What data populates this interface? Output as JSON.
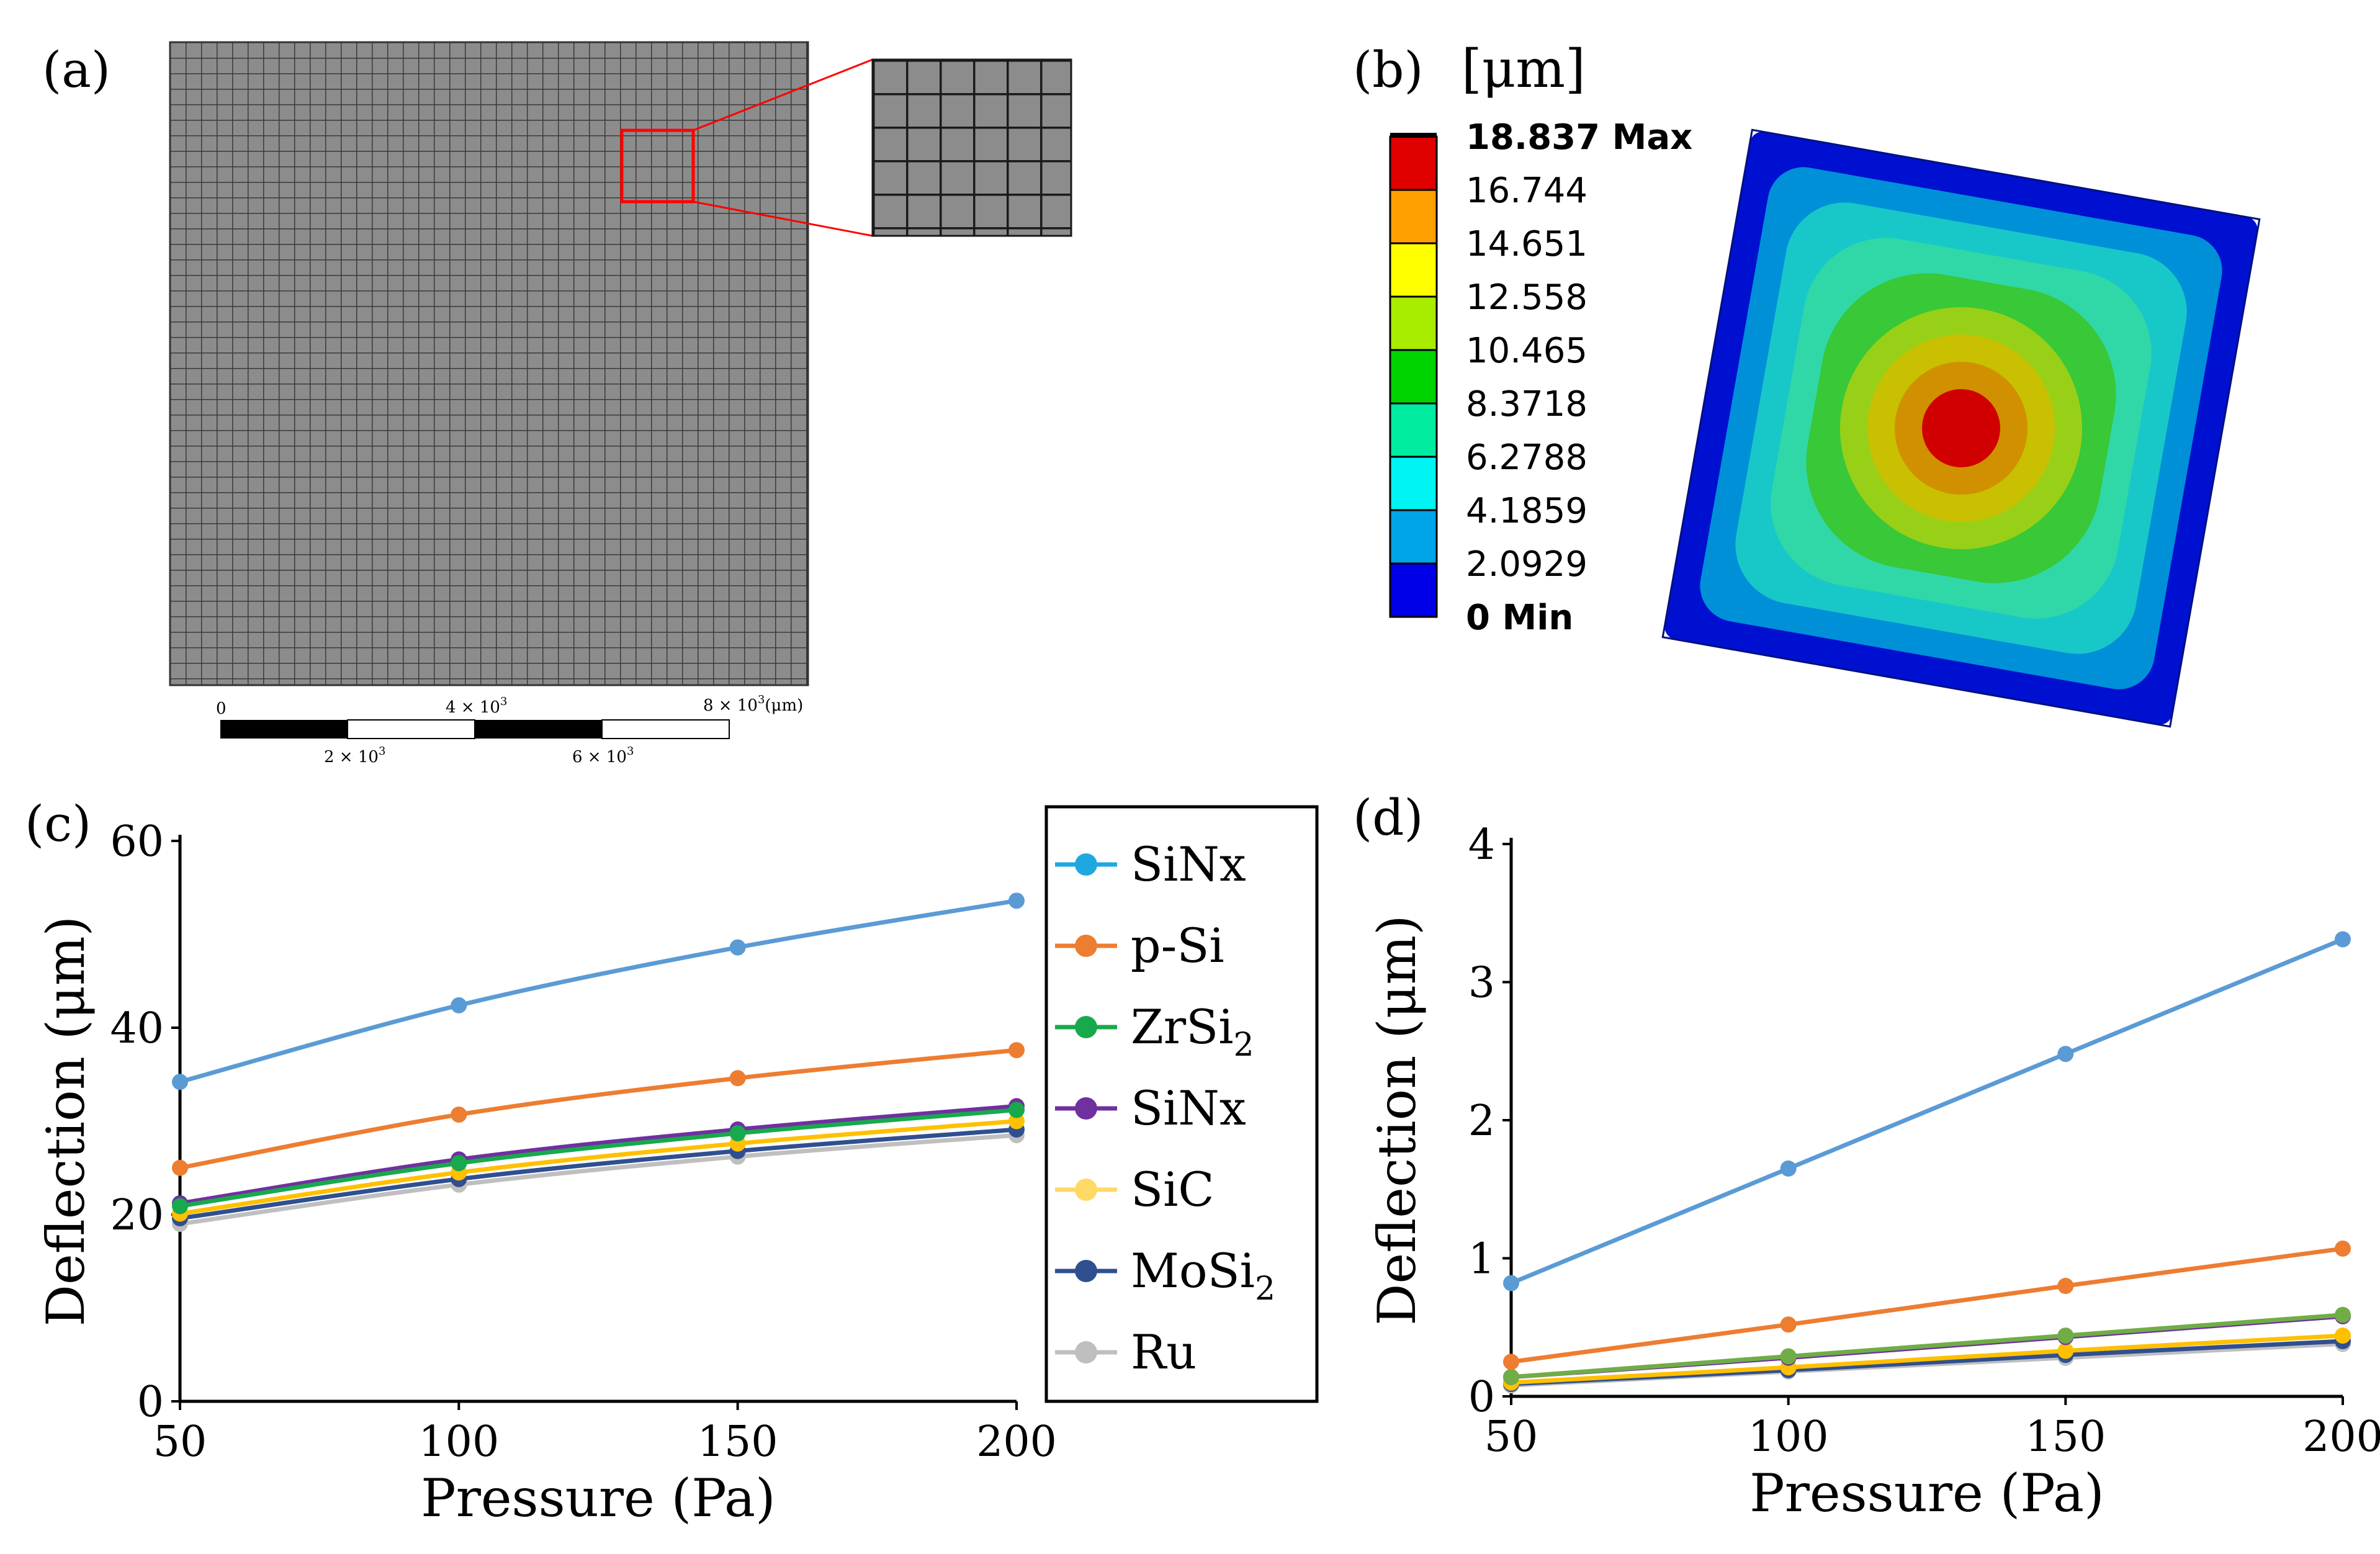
{
  "panels": {
    "a": {
      "label": "(a)",
      "scalebar": {
        "tick_0": "0",
        "tick_2": "2 × 10",
        "tick_4": "4 × 10",
        "tick_6": "6 × 10",
        "tick_8": "8 × 10",
        "exponent": "3",
        "unit": "(μm)"
      }
    },
    "b": {
      "label": "(b)",
      "unit": "[μm]",
      "colorbar": [
        {
          "label": "18.837 Max",
          "color": "#000000",
          "bold": true
        },
        {
          "label": "16.744",
          "color": "#e00000",
          "bold": false
        },
        {
          "label": "14.651",
          "color": "#ffa000",
          "bold": false
        },
        {
          "label": "12.558",
          "color": "#ffff00",
          "bold": false
        },
        {
          "label": "10.465",
          "color": "#a8ec00",
          "bold": false
        },
        {
          "label": "8.3718",
          "color": "#00d400",
          "bold": false
        },
        {
          "label": "6.2788",
          "color": "#00eca0",
          "bold": false
        },
        {
          "label": "4.1859",
          "color": "#00f4f4",
          "bold": false
        },
        {
          "label": "2.0929",
          "color": "#00a4e8",
          "bold": false
        },
        {
          "label": "0 Min",
          "color": "#0000e8",
          "bold": true
        }
      ],
      "contour_colors": [
        "#0010d0",
        "#0090d8",
        "#18c8c8",
        "#30d8a8",
        "#38c838",
        "#98d018",
        "#c8c000",
        "#d09000",
        "#d00000"
      ]
    },
    "c": {
      "label": "(c)"
    },
    "d": {
      "label": "(d)"
    }
  },
  "legend": {
    "entries": [
      {
        "label": "SiNx",
        "sub": "",
        "color": "#1fa8e0"
      },
      {
        "label": "p-Si",
        "sub": "",
        "color": "#ed7d31"
      },
      {
        "label": "ZrSi",
        "sub": "2",
        "color": "#18a94c"
      },
      {
        "label": "SiNx",
        "sub": "",
        "color": "#7030a0"
      },
      {
        "label": "SiC",
        "sub": "",
        "color": "#ffd966"
      },
      {
        "label": "MoSi",
        "sub": "2",
        "color": "#2f4f8f"
      },
      {
        "label": "Ru",
        "sub": "",
        "color": "#bfbfbf"
      }
    ]
  },
  "chart_data": [
    {
      "id": "c",
      "type": "line",
      "xlabel": "Pressure (Pa)",
      "ylabel": "Deflection (μm)",
      "x": [
        50,
        100,
        150,
        200
      ],
      "xticks": [
        50,
        100,
        150,
        200
      ],
      "yticks": [
        0,
        20,
        40,
        60
      ],
      "xlim": [
        50,
        200
      ],
      "ylim": [
        0,
        60
      ],
      "series": [
        {
          "name": "Ru",
          "color": "#bfbfbf",
          "values": [
            19.0,
            23.2,
            26.2,
            28.5
          ]
        },
        {
          "name": "MoSi2",
          "color": "#2f4f8f",
          "values": [
            19.6,
            23.8,
            26.8,
            29.1
          ]
        },
        {
          "name": "SiC",
          "color": "#ffc000",
          "values": [
            20.1,
            24.5,
            27.6,
            30.0
          ]
        },
        {
          "name": "SiNx",
          "color": "#7030a0",
          "values": [
            21.2,
            25.9,
            29.1,
            31.6
          ]
        },
        {
          "name": "ZrSi2",
          "color": "#18a94c",
          "values": [
            20.9,
            25.5,
            28.7,
            31.2
          ]
        },
        {
          "name": "p-Si",
          "color": "#ed7d31",
          "values": [
            25.0,
            30.7,
            34.6,
            37.6
          ]
        },
        {
          "name": "SiNx",
          "color": "#5b9bd5",
          "values": [
            34.2,
            42.4,
            48.6,
            53.6
          ]
        }
      ]
    },
    {
      "id": "d",
      "type": "line",
      "xlabel": "Pressure (Pa)",
      "ylabel": "Deflection (μm)",
      "x": [
        50,
        100,
        150,
        200
      ],
      "xticks": [
        50,
        100,
        150,
        200
      ],
      "yticks": [
        0,
        1,
        2,
        3,
        4
      ],
      "xlim": [
        50,
        200
      ],
      "ylim": [
        0,
        4
      ],
      "series": [
        {
          "name": "Ru",
          "color": "#bfbfbf",
          "values": [
            0.08,
            0.18,
            0.28,
            0.38
          ]
        },
        {
          "name": "MoSi2",
          "color": "#2f4f8f",
          "values": [
            0.09,
            0.19,
            0.3,
            0.4
          ]
        },
        {
          "name": "SiC",
          "color": "#ffc000",
          "values": [
            0.1,
            0.21,
            0.33,
            0.44
          ]
        },
        {
          "name": "SiNx",
          "color": "#7030a0",
          "values": [
            0.14,
            0.28,
            0.43,
            0.58
          ]
        },
        {
          "name": "ZrSi2",
          "color": "#70ad47",
          "values": [
            0.14,
            0.29,
            0.44,
            0.59
          ]
        },
        {
          "name": "p-Si",
          "color": "#ed7d31",
          "values": [
            0.25,
            0.52,
            0.8,
            1.07
          ]
        },
        {
          "name": "SiNx",
          "color": "#5b9bd5",
          "values": [
            0.82,
            1.65,
            2.48,
            3.31
          ]
        }
      ]
    }
  ]
}
